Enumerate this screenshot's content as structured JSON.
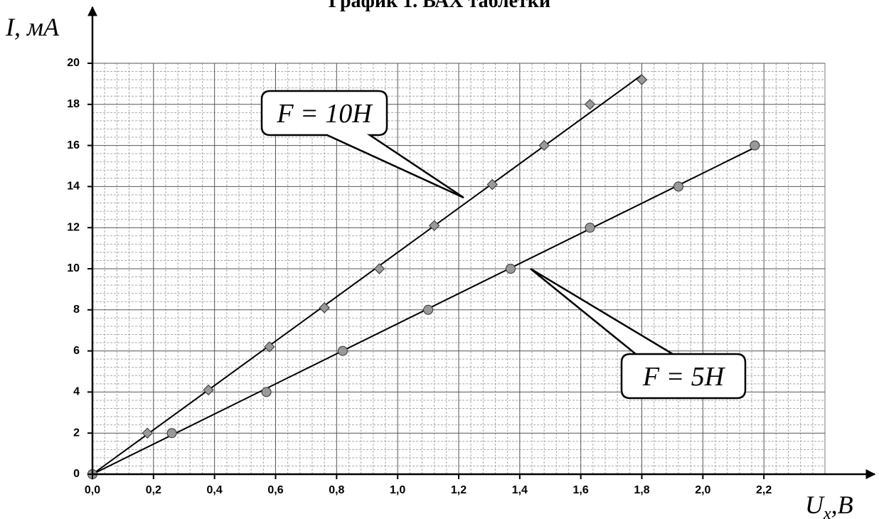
{
  "chart_data": {
    "type": "scatter",
    "title": "График 1. ВАХ таблетки",
    "y_label": "I, мА",
    "x_label": {
      "main": "U",
      "sub": "x",
      "rest": ",B"
    },
    "xlim": [
      0,
      2.4
    ],
    "ylim": [
      0,
      20
    ],
    "xticks": [
      {
        "value": 0,
        "label": "0,0"
      },
      {
        "value": 0.2,
        "label": "0,2"
      },
      {
        "value": 0.4,
        "label": "0,4"
      },
      {
        "value": 0.6,
        "label": "0,6"
      },
      {
        "value": 0.8,
        "label": "0,8"
      },
      {
        "value": 1.0,
        "label": "1,0"
      },
      {
        "value": 1.2,
        "label": "1,2"
      },
      {
        "value": 1.4,
        "label": "1,4"
      },
      {
        "value": 1.6,
        "label": "1,6"
      },
      {
        "value": 1.8,
        "label": "1,8"
      },
      {
        "value": 2.0,
        "label": "2,0"
      },
      {
        "value": 2.2,
        "label": "2,2"
      }
    ],
    "yticks": [
      0,
      2,
      4,
      6,
      8,
      10,
      12,
      14,
      16,
      18,
      20
    ],
    "grid": true,
    "series": [
      {
        "name": "F = 10H",
        "marker": "diamond",
        "color": "#999999",
        "x": [
          0,
          0.18,
          0.38,
          0.58,
          0.76,
          0.94,
          1.12,
          1.31,
          1.48,
          1.63,
          1.8
        ],
        "values": [
          0,
          2.0,
          4.1,
          6.2,
          8.1,
          10.0,
          12.1,
          14.1,
          16.0,
          18.0,
          19.2
        ]
      },
      {
        "name": "F = 5H",
        "marker": "circle",
        "color": "#999999",
        "x": [
          0,
          0.26,
          0.57,
          0.82,
          1.1,
          1.37,
          1.63,
          1.92,
          2.17
        ],
        "values": [
          0,
          2.0,
          4.0,
          6.0,
          8.0,
          10.0,
          12.0,
          14.0,
          16.0
        ]
      }
    ]
  }
}
